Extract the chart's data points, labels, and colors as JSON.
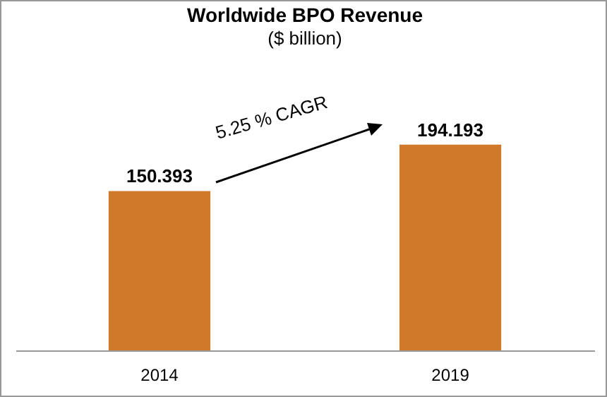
{
  "chart_data": {
    "type": "bar",
    "title": "Worldwide BPO Revenue",
    "subtitle": "($ billion)",
    "categories": [
      "2014",
      "2019"
    ],
    "values": [
      150.393,
      194.193
    ],
    "color": "#cf7a2a",
    "data_labels": true,
    "annotations": [
      "5.25 % CAGR"
    ]
  }
}
